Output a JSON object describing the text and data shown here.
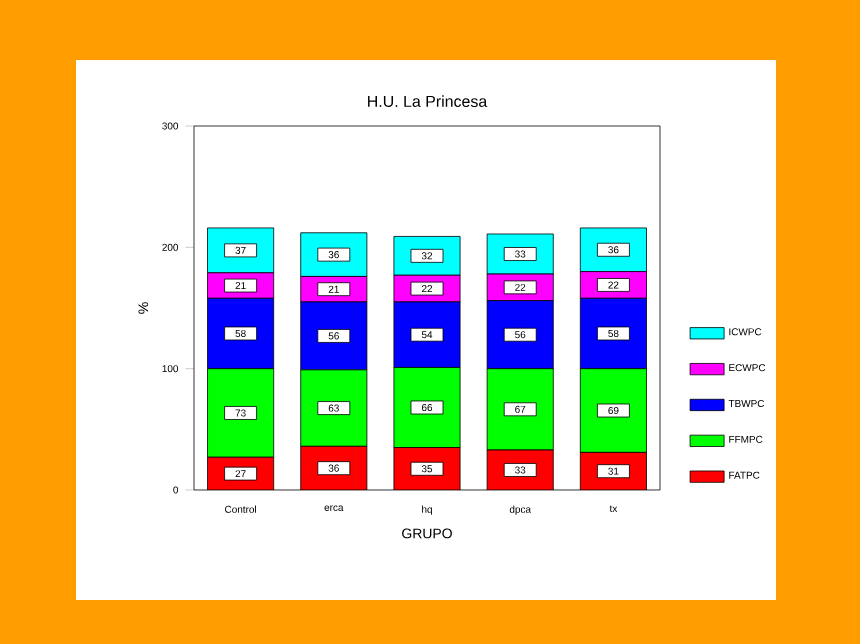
{
  "chart_data": {
    "type": "bar",
    "stacked": true,
    "title": "H.U. La Princesa",
    "xlabel": "GRUPO",
    "ylabel": "%",
    "categories": [
      "Control",
      "erca",
      "hq",
      "dpca",
      "tx"
    ],
    "series": [
      {
        "name": "FATPC",
        "color": "#ff0000",
        "values": [
          27,
          36,
          35,
          33,
          31
        ]
      },
      {
        "name": "FFMPC",
        "color": "#00ff00",
        "values": [
          73,
          63,
          66,
          67,
          69
        ]
      },
      {
        "name": "TBWPC",
        "color": "#0000ff",
        "values": [
          58,
          56,
          54,
          56,
          58
        ]
      },
      {
        "name": "ECWPC",
        "color": "#ff00ff",
        "values": [
          21,
          21,
          22,
          22,
          22
        ]
      },
      {
        "name": "ICWPC",
        "color": "#00ffff",
        "values": [
          37,
          36,
          32,
          33,
          36
        ]
      }
    ],
    "ylim": [
      0,
      300
    ],
    "yticks": [
      0,
      100,
      200,
      300
    ],
    "data_labels": true,
    "legend": "right"
  }
}
